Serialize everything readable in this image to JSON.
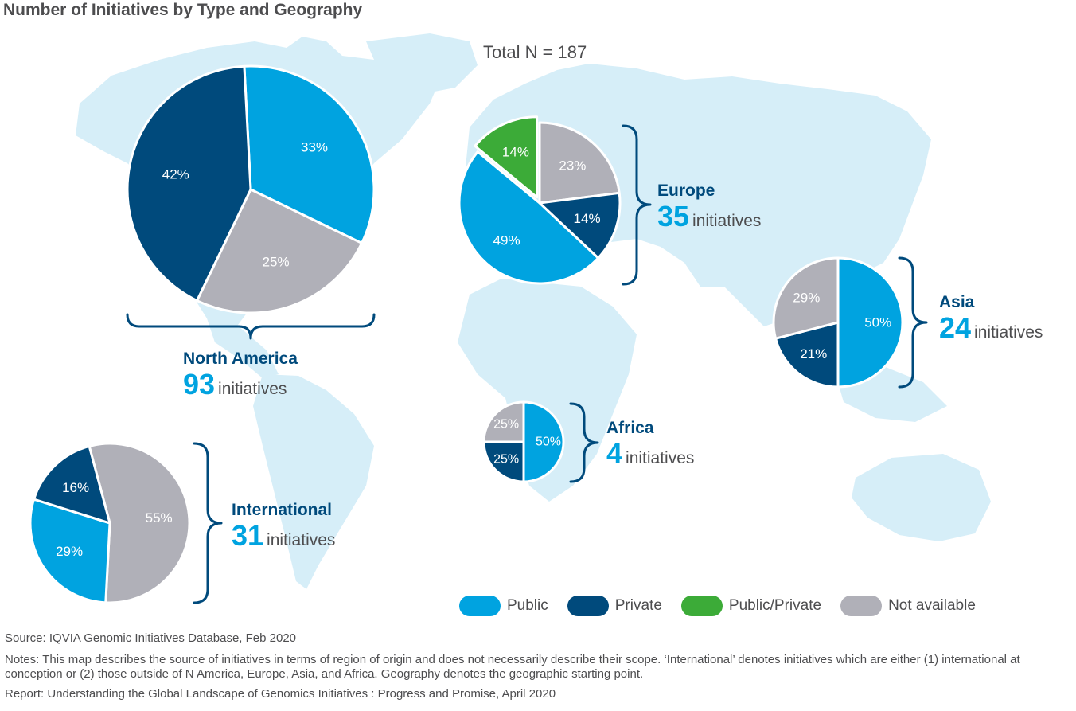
{
  "title": "Number of Initiatives by Type and Geography",
  "total_label": "Total N = 187",
  "colors": {
    "Public": "#00a3e0",
    "Private": "#004a7c",
    "Public/Private": "#3cab38",
    "Not available": "#b0b0b8",
    "map": "#d6eef8"
  },
  "regions": {
    "north_america": {
      "name": "North America",
      "count": "93",
      "unit": "initiatives"
    },
    "europe": {
      "name": "Europe",
      "count": "35",
      "unit": "initiatives"
    },
    "asia": {
      "name": "Asia",
      "count": "24",
      "unit": "initiatives"
    },
    "africa": {
      "name": "Africa",
      "count": "4",
      "unit": "initiatives"
    },
    "international": {
      "name": "International",
      "count": "31",
      "unit": "initiatives"
    }
  },
  "legend": [
    {
      "label": "Public",
      "color": "#00a3e0"
    },
    {
      "label": "Private",
      "color": "#004a7c"
    },
    {
      "label": "Public/Private",
      "color": "#3cab38"
    },
    {
      "label": "Not available",
      "color": "#b0b0b8"
    }
  ],
  "footer": {
    "source": "Source: IQVIA Genomic Initiatives Database, Feb 2020",
    "notes": "Notes: This map describes the source of initiatives in terms of region of origin and does not necessarily describe their scope. ‘International’ denotes initiatives which are either (1) international at conception or (2) those outside of N America, Europe, Asia, and Africa. Geography  denotes the geographic starting point.",
    "report": "Report: Understanding the Global Landscape of Genomics Initiatives : Progress and Promise, April 2020"
  },
  "chart_data": [
    {
      "type": "pie",
      "region": "North America",
      "total": 93,
      "slices": [
        {
          "category": "Public",
          "value": 33,
          "label": "33%"
        },
        {
          "category": "Not available",
          "value": 25,
          "label": "25%"
        },
        {
          "category": "Private",
          "value": 42,
          "label": "42%"
        }
      ]
    },
    {
      "type": "pie",
      "region": "Europe",
      "total": 35,
      "slices": [
        {
          "category": "Not available",
          "value": 23,
          "label": "23%"
        },
        {
          "category": "Private",
          "value": 14,
          "label": "14%"
        },
        {
          "category": "Public",
          "value": 49,
          "label": "49%"
        },
        {
          "category": "Public/Private",
          "value": 14,
          "label": "14%"
        }
      ]
    },
    {
      "type": "pie",
      "region": "Asia",
      "total": 24,
      "slices": [
        {
          "category": "Public",
          "value": 50,
          "label": "50%"
        },
        {
          "category": "Private",
          "value": 21,
          "label": "21%"
        },
        {
          "category": "Not available",
          "value": 29,
          "label": "29%"
        }
      ]
    },
    {
      "type": "pie",
      "region": "Africa",
      "total": 4,
      "slices": [
        {
          "category": "Public",
          "value": 50,
          "label": "50%"
        },
        {
          "category": "Private",
          "value": 25,
          "label": "25%"
        },
        {
          "category": "Not available",
          "value": 25,
          "label": "25%"
        }
      ]
    },
    {
      "type": "pie",
      "region": "International",
      "total": 31,
      "slices": [
        {
          "category": "Not available",
          "value": 55,
          "label": "55%"
        },
        {
          "category": "Public",
          "value": 29,
          "label": "29%"
        },
        {
          "category": "Private",
          "value": 16,
          "label": "16%"
        }
      ]
    }
  ]
}
